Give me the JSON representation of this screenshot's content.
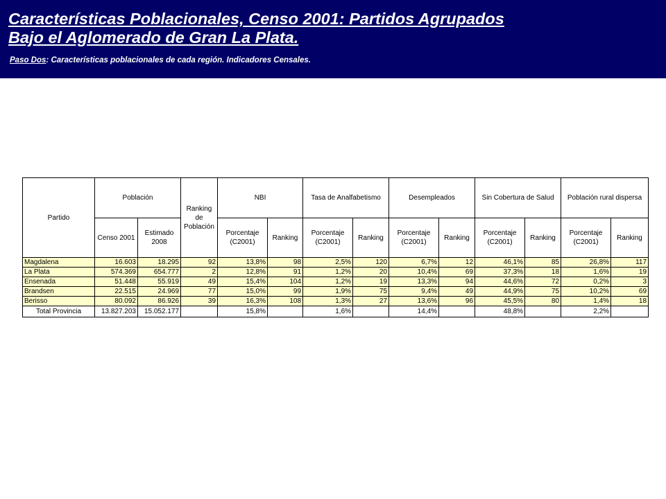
{
  "header": {
    "title_line1": "Características Poblacionales, Censo 2001: Partidos Agrupados",
    "title_line2": "Bajo el Aglomerado de Gran La Plata.",
    "step_label": " Paso Dos",
    "step_text": ": Características  poblacionales de cada región. Indicadores Censales."
  },
  "table": {
    "partido_header": "Partido",
    "poblacion_header": "Población",
    "ranking_poblacion_header": "Ranking de Población",
    "nbi_header": "NBI",
    "analfabetismo_header": "Tasa de Analfabetismo",
    "desempleados_header": "Desempleados",
    "salud_header": "Sin Cobertura de Salud",
    "rural_header": "Población rural dispersa",
    "censo_header": "Censo 2001",
    "estimado_header": "Estimado 2008",
    "porcentaje_header": "Porcentaje (C2001)",
    "ranking_header": "Ranking",
    "rows": [
      {
        "partido": "Magdalena",
        "censo": "16.603",
        "estimado": "18.295",
        "rank_pob": "92",
        "nbi_pct": "13,8%",
        "nbi_rank": "98",
        "analf_pct": "2,5%",
        "analf_rank": "120",
        "desemp_pct": "6,7%",
        "desemp_rank": "12",
        "salud_pct": "46,1%",
        "salud_rank": "85",
        "rural_pct": "26,8%",
        "rural_rank": "117"
      },
      {
        "partido": "La Plata",
        "censo": "574.369",
        "estimado": "654.777",
        "rank_pob": "2",
        "nbi_pct": "12,8%",
        "nbi_rank": "91",
        "analf_pct": "1,2%",
        "analf_rank": "20",
        "desemp_pct": "10,4%",
        "desemp_rank": "69",
        "salud_pct": "37,3%",
        "salud_rank": "18",
        "rural_pct": "1,6%",
        "rural_rank": "19"
      },
      {
        "partido": "Ensenada",
        "censo": "51.448",
        "estimado": "55.919",
        "rank_pob": "49",
        "nbi_pct": "15,4%",
        "nbi_rank": "104",
        "analf_pct": "1,2%",
        "analf_rank": "19",
        "desemp_pct": "13,3%",
        "desemp_rank": "94",
        "salud_pct": "44,6%",
        "salud_rank": "72",
        "rural_pct": "0,2%",
        "rural_rank": "3"
      },
      {
        "partido": "Brandsen",
        "censo": "22.515",
        "estimado": "24.969",
        "rank_pob": "77",
        "nbi_pct": "15,0%",
        "nbi_rank": "99",
        "analf_pct": "1,9%",
        "analf_rank": "75",
        "desemp_pct": "9,4%",
        "desemp_rank": "49",
        "salud_pct": "44,9%",
        "salud_rank": "75",
        "rural_pct": "10,2%",
        "rural_rank": "69"
      },
      {
        "partido": "Berisso",
        "censo": "80.092",
        "estimado": "86.926",
        "rank_pob": "39",
        "nbi_pct": "16,3%",
        "nbi_rank": "108",
        "analf_pct": "1,3%",
        "analf_rank": "27",
        "desemp_pct": "13,6%",
        "desemp_rank": "96",
        "salud_pct": "45,5%",
        "salud_rank": "80",
        "rural_pct": "1,4%",
        "rural_rank": "18"
      }
    ],
    "total": {
      "partido": "Total Provincia",
      "censo": "13.827.203",
      "estimado": "15.052.177",
      "nbi_pct": "15,8%",
      "analf_pct": "1,6%",
      "desemp_pct": "14,4%",
      "salud_pct": "48,8%",
      "rural_pct": "2,2%"
    }
  }
}
